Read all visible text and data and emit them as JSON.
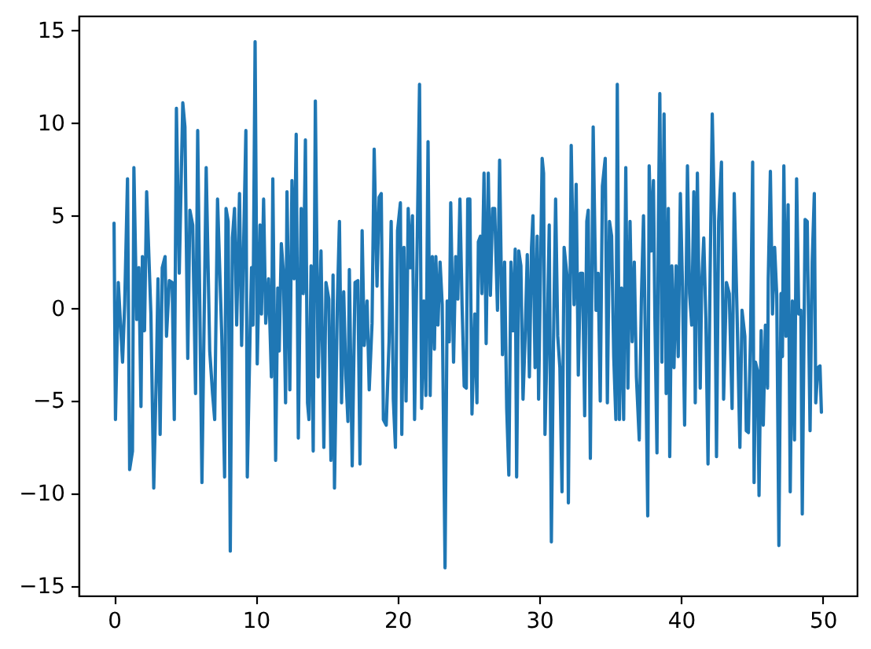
{
  "chart_data": {
    "type": "line",
    "color": "#1f77b4",
    "xlim": [
      -2.5,
      52.4
    ],
    "ylim": [
      -15.5,
      15.8
    ],
    "xticks": [
      0,
      10,
      20,
      30,
      40,
      50
    ],
    "yticks": [
      -15,
      -10,
      -5,
      0,
      5,
      10,
      15
    ],
    "x": [
      0,
      0.1,
      0.3,
      0.6,
      0.75,
      0.95,
      1.1,
      1.3,
      1.4,
      1.6,
      1.75,
      1.9,
      2.0,
      2.15,
      2.3,
      2.6,
      2.8,
      3.0,
      3.1,
      3.25,
      3.4,
      3.6,
      3.7,
      3.9,
      4.1,
      4.25,
      4.4,
      4.6,
      4.85,
      5.0,
      5.2,
      5.35,
      5.55,
      5.75,
      5.9,
      6.2,
      6.5,
      6.75,
      6.95,
      7.1,
      7.3,
      7.6,
      7.8,
      7.9,
      8.05,
      8.2,
      8.35,
      8.5,
      8.65,
      8.85,
      9.0,
      9.3,
      9.4,
      9.6,
      9.7,
      9.8,
      9.95,
      10.1,
      10.3,
      10.4,
      10.55,
      10.7,
      10.9,
      11.1,
      11.2,
      11.4,
      11.55,
      11.65,
      11.8,
      11.95,
      12.1,
      12.2,
      12.4,
      12.55,
      12.7,
      12.85,
      13.0,
      13.2,
      13.35,
      13.5,
      13.65,
      13.75,
      13.9,
      14.05,
      14.2,
      14.4,
      14.6,
      14.8,
      14.95,
      15.15,
      15.3,
      15.45,
      15.55,
      15.75,
      15.9,
      16.05,
      16.2,
      16.35,
      16.5,
      16.6,
      16.8,
      17.0,
      17.2,
      17.35,
      17.5,
      17.65,
      17.85,
      18.0,
      18.2,
      18.35,
      18.55,
      18.7,
      18.85,
      19.0,
      19.2,
      19.4,
      19.55,
      19.7,
      19.85,
      20.0,
      20.2,
      20.3,
      20.45,
      20.6,
      20.75,
      20.9,
      21.05,
      21.2,
      21.55,
      21.7,
      21.85,
      22.0,
      22.15,
      22.3,
      22.45,
      22.6,
      22.7,
      22.85,
      23.0,
      23.15,
      23.35,
      23.5,
      23.65,
      23.75,
      23.95,
      24.1,
      24.25,
      24.4,
      24.55,
      24.7,
      24.85,
      24.95,
      25.1,
      25.25,
      25.45,
      25.6,
      25.7,
      25.85,
      25.95,
      26.1,
      26.25,
      26.4,
      26.55,
      26.7,
      26.85,
      27.05,
      27.2,
      27.4,
      27.55,
      27.7,
      27.85,
      28.0,
      28.15,
      28.3,
      28.4,
      28.55,
      28.7,
      28.85,
      29.0,
      29.15,
      29.3,
      29.45,
      29.55,
      29.7,
      29.85,
      29.95,
      30.2,
      30.3,
      30.4,
      30.55,
      30.7,
      30.85,
      31.0,
      31.15,
      31.3,
      31.45,
      31.6,
      31.75,
      31.95,
      32.05,
      32.25,
      32.45,
      32.6,
      32.75,
      32.9,
      33.05,
      33.2,
      33.35,
      33.45,
      33.6,
      33.8,
      34.0,
      34.15,
      34.3,
      34.45,
      34.65,
      34.8,
      34.95,
      35.1,
      35.25,
      35.4,
      35.5,
      35.65,
      35.8,
      35.95,
      36.1,
      36.25,
      36.4,
      36.55,
      36.7,
      36.85,
      37.05,
      37.2,
      37.35,
      37.5,
      37.65,
      37.75,
      37.9,
      38.05,
      38.15,
      38.3,
      38.4,
      38.5,
      38.65,
      38.8,
      38.95,
      39.1,
      39.2,
      39.35,
      39.5,
      39.65,
      39.8,
      39.95,
      40.1,
      40.25,
      40.45,
      40.6,
      40.75,
      40.9,
      41.0,
      41.15,
      41.35,
      41.45,
      41.6,
      41.75,
      41.9,
      42.05,
      42.2,
      42.35,
      42.5,
      42.65,
      42.85,
      43.0,
      43.2,
      43.4,
      43.6,
      43.75,
      43.95,
      44.15,
      44.3,
      44.5,
      44.6,
      44.75,
      44.9,
      45.05,
      45.15,
      45.25,
      45.4,
      45.5,
      45.65,
      45.8,
      45.95,
      46.1,
      46.15,
      46.3,
      46.45,
      46.6,
      46.75,
      46.9,
      47.05,
      47.15,
      47.25,
      47.4,
      47.55,
      47.7,
      47.85,
      48.0,
      48.15,
      48.3,
      48.45,
      48.55,
      48.75,
      48.9,
      49.1,
      49.25,
      49.4,
      49.5,
      49.65,
      49.8,
      49.9
    ],
    "values": [
      4.6,
      -6.0,
      1.4,
      -2.9,
      0.2,
      7.0,
      -8.7,
      -7.7,
      7.6,
      -0.6,
      2.2,
      -5.3,
      2.8,
      -1.2,
      6.3,
      -0.3,
      -9.7,
      -2.9,
      1.6,
      -6.8,
      2.2,
      2.8,
      -1.5,
      1.5,
      1.4,
      -6.0,
      10.8,
      1.9,
      11.1,
      9.8,
      -2.7,
      5.3,
      4.5,
      -4.6,
      9.6,
      -9.4,
      7.6,
      -2.3,
      -4.6,
      -6.0,
      5.9,
      -1.5,
      -9.1,
      5.4,
      4.7,
      -13.1,
      3.8,
      5.4,
      -0.9,
      6.2,
      -2.0,
      9.6,
      -9.1,
      -1.2,
      2.2,
      -0.9,
      14.4,
      -3.0,
      4.5,
      -0.3,
      5.9,
      -0.8,
      1.6,
      -3.7,
      7.0,
      -8.2,
      1.1,
      -2.3,
      3.5,
      1.9,
      -5.1,
      6.3,
      -4.4,
      6.9,
      1.6,
      9.4,
      -7.0,
      5.4,
      0.8,
      9.1,
      -5.1,
      -6.0,
      2.3,
      -7.7,
      11.2,
      -3.7,
      3.1,
      -7.5,
      1.4,
      0.5,
      -8.2,
      1.8,
      -9.7,
      0.2,
      4.7,
      -5.1,
      0.9,
      -3.6,
      -6.1,
      2.1,
      -8.5,
      1.4,
      1.5,
      -8.4,
      4.2,
      -2.0,
      0.4,
      -4.4,
      -0.8,
      8.6,
      1.2,
      6.0,
      6.2,
      -6.0,
      -6.3,
      -1.8,
      4.7,
      -4.9,
      -7.5,
      4.2,
      5.7,
      -6.8,
      3.3,
      -5.0,
      5.4,
      2.2,
      5.0,
      -6.0,
      12.1,
      -5.4,
      0.4,
      -4.7,
      9.0,
      -4.7,
      2.8,
      -2.2,
      2.8,
      -0.9,
      2.5,
      0.2,
      -14.0,
      0.4,
      -1.8,
      5.7,
      -2.9,
      2.8,
      0.5,
      5.9,
      0.2,
      -4.2,
      -4.3,
      5.9,
      5.9,
      -5.7,
      -0.3,
      -5.1,
      3.6,
      3.9,
      0.8,
      7.3,
      -1.9,
      7.3,
      0.7,
      5.4,
      5.4,
      -0.1,
      8.0,
      -2.5,
      2.5,
      -5.4,
      -9.0,
      2.5,
      -1.2,
      3.2,
      -9.1,
      3.1,
      2.3,
      -4.9,
      -1.5,
      2.9,
      -3.7,
      3.3,
      5.0,
      -3.2,
      3.9,
      -4.9,
      8.1,
      7.3,
      -6.8,
      -1.8,
      4.5,
      -12.6,
      -1.8,
      5.9,
      -1.5,
      -3.2,
      -9.9,
      3.3,
      1.8,
      -10.5,
      8.8,
      0.2,
      6.7,
      -3.6,
      1.9,
      1.9,
      -5.8,
      4.7,
      5.3,
      -8.1,
      9.8,
      -0.1,
      1.9,
      -5.0,
      6.6,
      8.1,
      -5.1,
      4.7,
      3.9,
      -2.6,
      -6.0,
      12.1,
      -6.0,
      1.1,
      -6.0,
      7.6,
      -4.3,
      4.7,
      -1.8,
      2.5,
      -3.7,
      -7.1,
      0.5,
      5.0,
      -2.6,
      -11.2,
      7.7,
      3.1,
      6.9,
      -0.3,
      -7.8,
      4.7,
      11.6,
      -2.9,
      10.5,
      -4.6,
      5.4,
      -8.0,
      2.3,
      -3.2,
      2.3,
      -2.6,
      6.2,
      1.2,
      -6.3,
      7.7,
      0.8,
      -0.9,
      6.3,
      -5.1,
      7.3,
      -4.3,
      1.2,
      3.8,
      -0.6,
      -8.4,
      1.9,
      10.5,
      5.0,
      -8.0,
      4.7,
      7.9,
      -4.9,
      1.4,
      0.8,
      -5.4,
      6.2,
      -0.3,
      -7.5,
      -0.1,
      -1.5,
      -6.6,
      -6.7,
      -1.5,
      7.9,
      -9.4,
      -2.9,
      -3.4,
      -10.1,
      -1.2,
      -6.3,
      -0.9,
      -4.3,
      1.6,
      7.4,
      -0.3,
      3.3,
      0.7,
      -12.8,
      0.8,
      -2.6,
      7.7,
      -1.5,
      5.6,
      -9.9,
      0.4,
      -7.1,
      7.0,
      -0.3,
      -0.1,
      -11.1,
      4.8,
      4.7,
      -6.6,
      2.5,
      6.2,
      -5.1,
      -3.2,
      -3.1,
      -5.6
    ]
  }
}
